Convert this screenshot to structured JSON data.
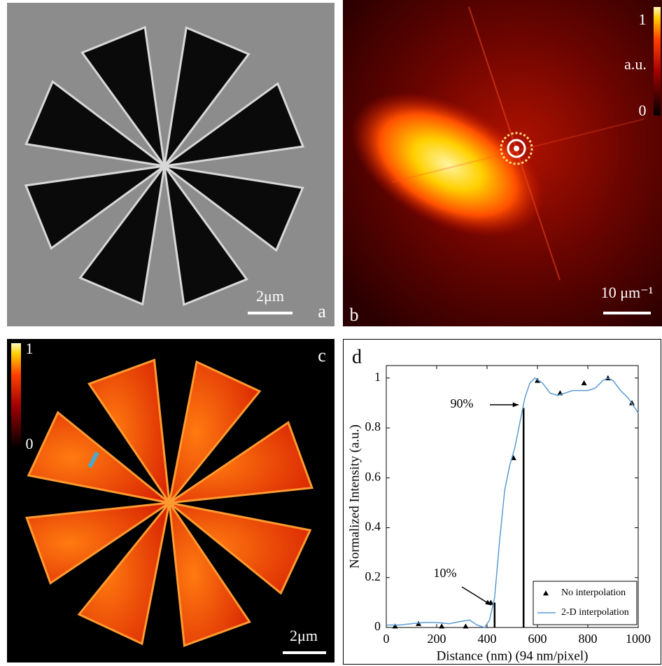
{
  "panels": {
    "a": {
      "label": "a",
      "scale_bar": "2μm"
    },
    "b": {
      "label": "b",
      "scale_bar": "10 μm⁻¹",
      "colorbar": {
        "max": "1",
        "unit": "a.u.",
        "min": "0"
      }
    },
    "c": {
      "label": "c",
      "scale_bar": "2μm",
      "colorbar": {
        "max": "1",
        "min": "0"
      }
    }
  },
  "chart_data": {
    "type": "line",
    "panel_label": "d",
    "x_label": "Distance (nm) (94 nm/pixel)",
    "y_label": "Normalized Intensity (a.u.)",
    "xlim": [
      0,
      1000
    ],
    "xticks": [
      0,
      200,
      400,
      600,
      800,
      1000
    ],
    "ylim": [
      0,
      1.05
    ],
    "yticks": [
      0,
      0.2,
      0.4,
      0.6,
      0.8,
      1
    ],
    "legend": "lower right",
    "series": [
      {
        "name": "No interpolation",
        "type": "scatter",
        "color": "#000000",
        "x": [
          35,
          128,
          220,
          315,
          415,
          505,
          600,
          690,
          785,
          880,
          975
        ],
        "values": [
          0.005,
          0.015,
          0.005,
          0.005,
          0.1,
          0.68,
          0.99,
          0.94,
          0.98,
          1.0,
          0.9
        ]
      },
      {
        "name": "2-D interpolation",
        "type": "line",
        "color": "#5b9bd5",
        "x": [
          0,
          50,
          100,
          150,
          200,
          250,
          300,
          330,
          360,
          390,
          410,
          430,
          450,
          470,
          490,
          510,
          530,
          550,
          570,
          590,
          620,
          650,
          680,
          710,
          740,
          770,
          800,
          830,
          860,
          880,
          900,
          930,
          960,
          1000
        ],
        "values": [
          0.01,
          0.01,
          0.015,
          0.02,
          0.02,
          0.015,
          0.025,
          0.03,
          0.01,
          0.0,
          0.03,
          0.12,
          0.35,
          0.55,
          0.65,
          0.72,
          0.82,
          0.92,
          0.98,
          1.0,
          0.98,
          0.94,
          0.93,
          0.94,
          0.95,
          0.95,
          0.95,
          0.96,
          0.99,
          1.0,
          0.99,
          0.95,
          0.92,
          0.86
        ]
      }
    ],
    "markers": [
      {
        "x": 430,
        "value": 0.1,
        "label": "10%"
      },
      {
        "x": 545,
        "value": 0.88,
        "label": "90%"
      }
    ]
  }
}
